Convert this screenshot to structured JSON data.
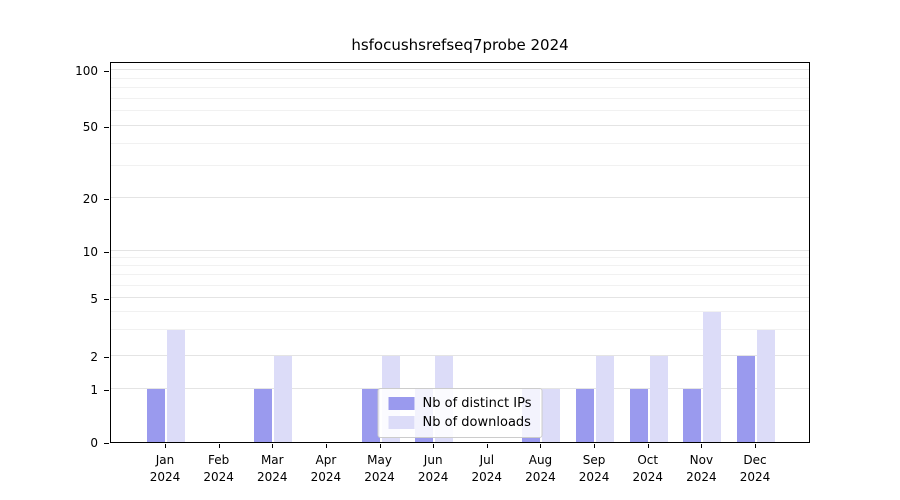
{
  "title": "hsfocushsrefseq7probe 2024",
  "chart_data": {
    "type": "bar",
    "title": "hsfocushsrefseq7probe 2024",
    "xlabel": "",
    "ylabel": "",
    "year_label": "2024",
    "months": [
      "Jan",
      "Feb",
      "Mar",
      "Apr",
      "May",
      "Jun",
      "Jul",
      "Aug",
      "Sep",
      "Oct",
      "Nov",
      "Dec"
    ],
    "categories": [
      "Jan 2024",
      "Feb 2024",
      "Mar 2024",
      "Apr 2024",
      "May 2024",
      "Jun 2024",
      "Jul 2024",
      "Aug 2024",
      "Sep 2024",
      "Oct 2024",
      "Nov 2024",
      "Dec 2024"
    ],
    "series": [
      {
        "name": "Nb of distinct IPs",
        "color": "#9a9aee",
        "values": [
          1,
          0,
          1,
          0,
          1,
          1,
          0,
          1,
          1,
          1,
          1,
          2
        ]
      },
      {
        "name": "Nb of downloads",
        "color": "#dcdcf8",
        "values": [
          3,
          0,
          2,
          0,
          2,
          2,
          0,
          1,
          2,
          2,
          4,
          3
        ]
      }
    ],
    "yscale": "log-like (0,1,2,5,10,20,50,100)",
    "yticks": [
      0,
      1,
      2,
      5,
      10,
      20,
      50,
      100
    ],
    "minor_gridlines": [
      3,
      4,
      6,
      7,
      8,
      9,
      30,
      40,
      60,
      70,
      80,
      90
    ],
    "ylim": [
      0,
      110
    ],
    "grid": true,
    "legend_position": "bottom-center",
    "colors": {
      "axis_line": "#000000",
      "grid_major": "#e4e4e4",
      "grid_minor": "#f1f1f1",
      "background": "#ffffff"
    }
  }
}
